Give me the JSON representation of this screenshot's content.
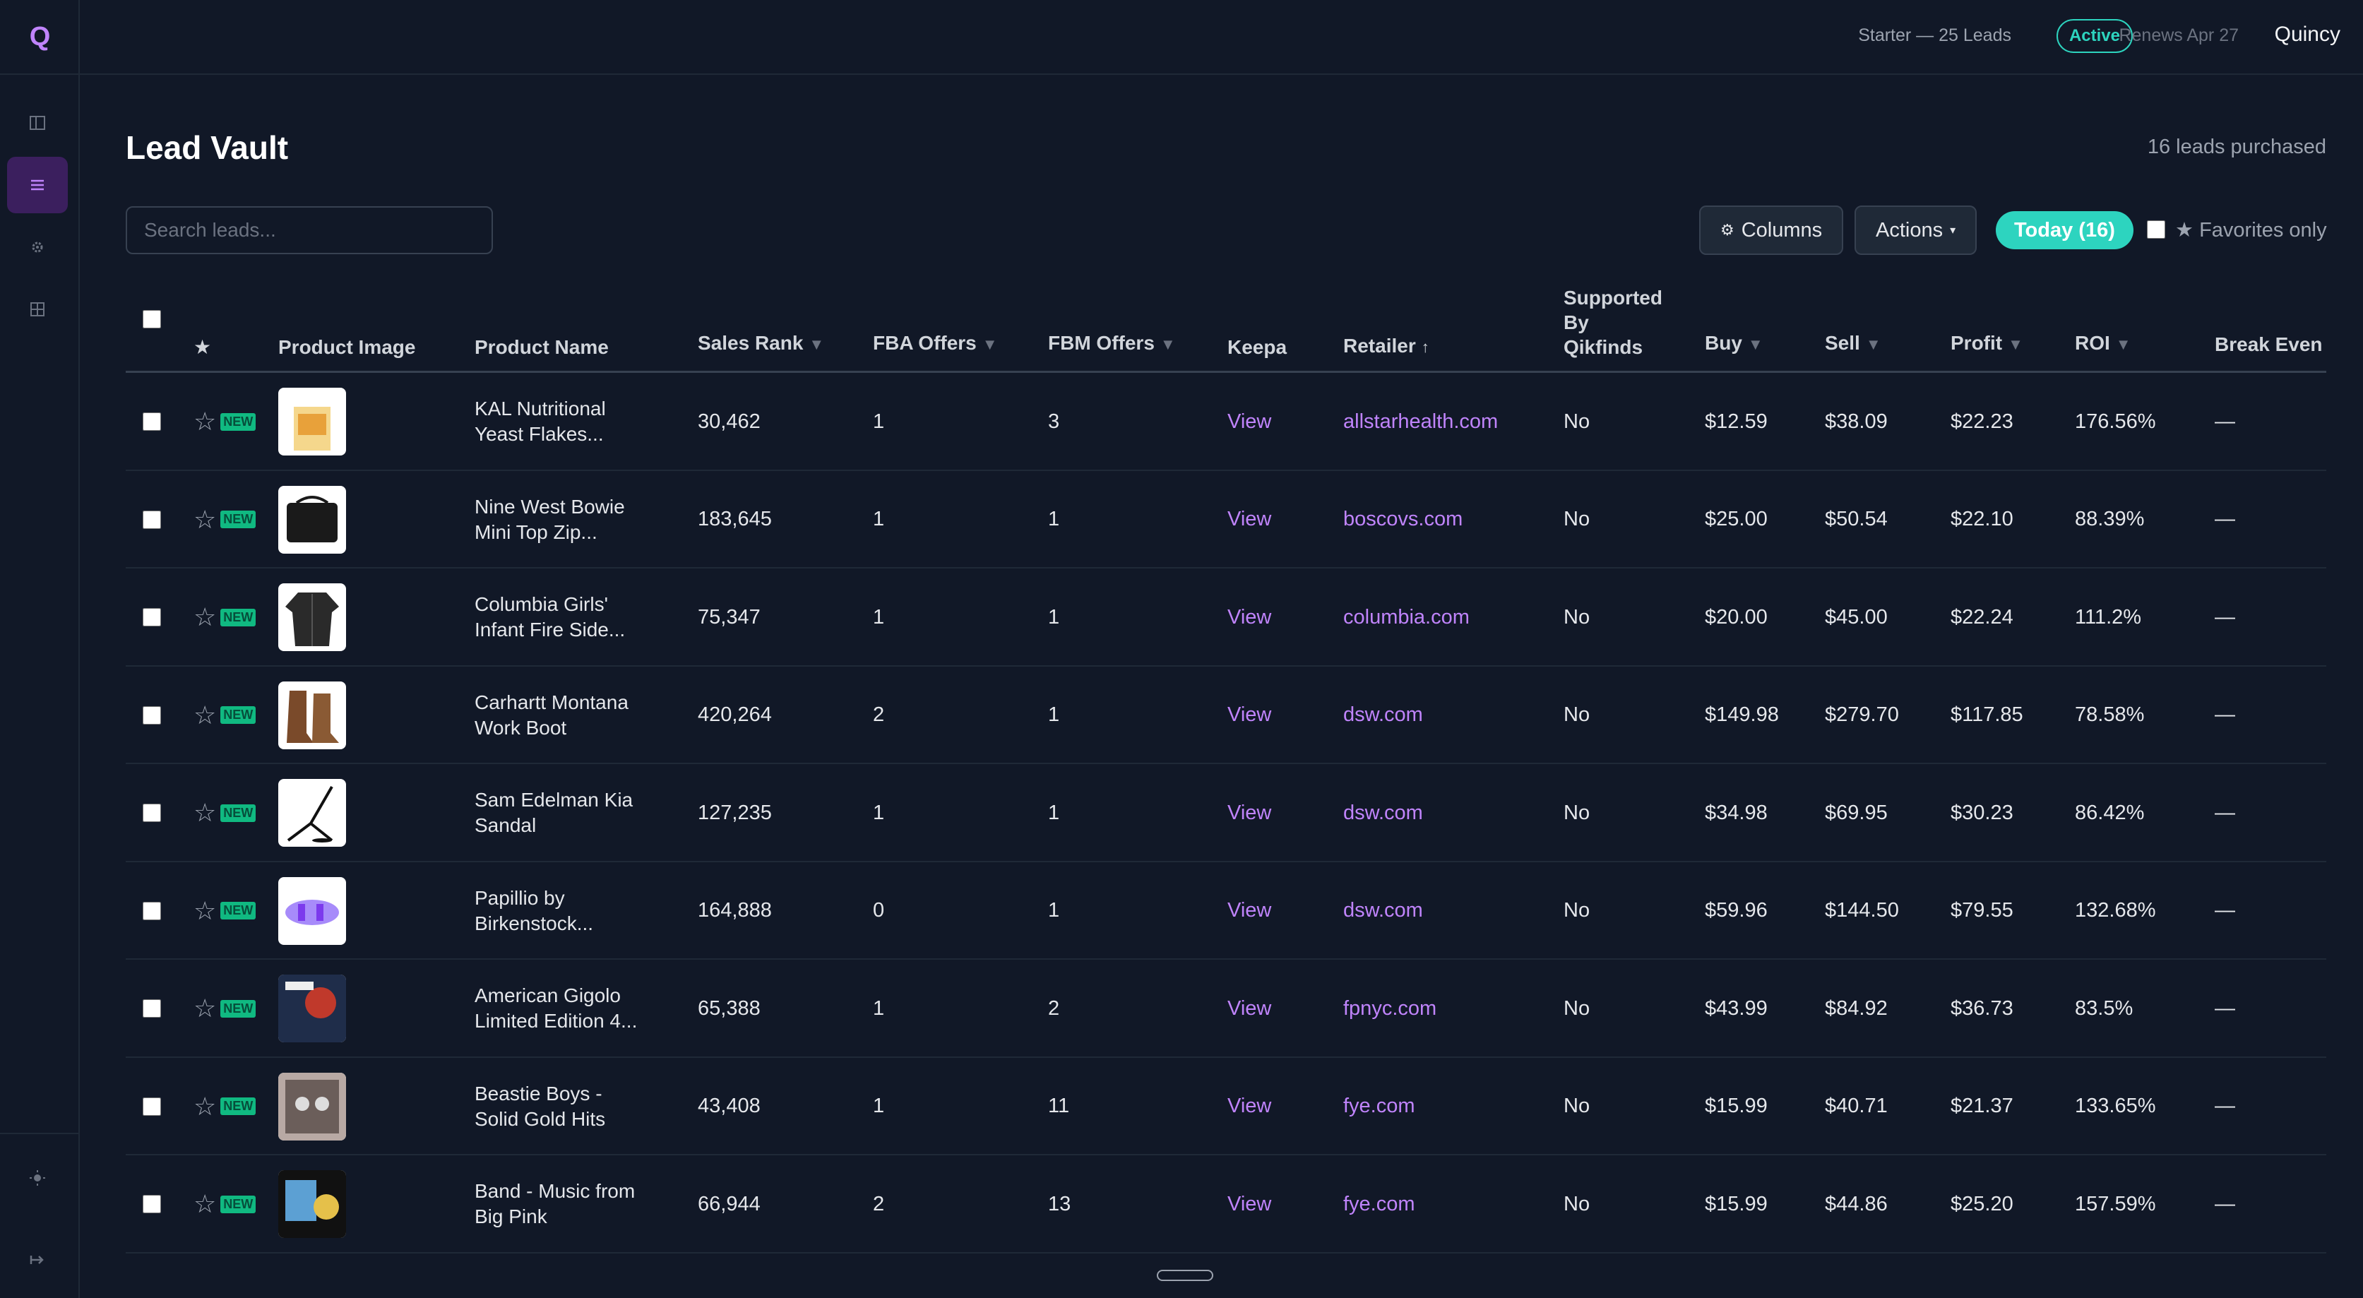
{
  "app": {
    "logo": "Q",
    "user": "Quincy"
  },
  "subscription": {
    "plan": "Starter — 25 Leads",
    "status": "Active",
    "renews": "Renews Apr 27"
  },
  "sidebar": {
    "icons": [
      "panel-icon",
      "list-icon",
      "gear-icon",
      "grid-icon",
      "sun-icon",
      "logout-icon"
    ]
  },
  "page": {
    "title": "Lead Vault",
    "leads_count": "16 leads purchased"
  },
  "search": {
    "placeholder": "Search leads..."
  },
  "toolbar": {
    "columns_label": "Columns",
    "actions_label": "Actions",
    "today_label": "Today (16)",
    "favorites_label": "Favorites only"
  },
  "columns": {
    "product_image": "Product Image",
    "product_name": "Product Name",
    "sales_rank": "Sales Rank",
    "fba_offers": "FBA Offers",
    "fbm_offers": "FBM Offers",
    "keepa": "Keepa",
    "retailer": "Retailer",
    "supported_1": "Supported",
    "supported_2": "By",
    "supported_3": "Qikfinds",
    "buy": "Buy",
    "sell": "Sell",
    "profit": "Profit",
    "roi": "ROI",
    "break_even": "Break Even"
  },
  "badge_new": "NEW",
  "rows": [
    {
      "name1": "KAL Nutritional",
      "name2": "Yeast Flakes...",
      "rank": "30,462",
      "fba": "1",
      "fbm": "3",
      "keepa": "View",
      "retailer": "allstarhealth.com",
      "supported": "No",
      "buy": "$12.59",
      "sell": "$38.09",
      "profit": "$22.23",
      "roi": "176.56%",
      "breakeven": "—"
    },
    {
      "name1": "Nine West Bowie",
      "name2": "Mini Top Zip...",
      "rank": "183,645",
      "fba": "1",
      "fbm": "1",
      "keepa": "View",
      "retailer": "boscovs.com",
      "supported": "No",
      "buy": "$25.00",
      "sell": "$50.54",
      "profit": "$22.10",
      "roi": "88.39%",
      "breakeven": "—"
    },
    {
      "name1": "Columbia Girls'",
      "name2": "Infant Fire Side...",
      "rank": "75,347",
      "fba": "1",
      "fbm": "1",
      "keepa": "View",
      "retailer": "columbia.com",
      "supported": "No",
      "buy": "$20.00",
      "sell": "$45.00",
      "profit": "$22.24",
      "roi": "111.2%",
      "breakeven": "—"
    },
    {
      "name1": "Carhartt Montana",
      "name2": "Work Boot",
      "rank": "420,264",
      "fba": "2",
      "fbm": "1",
      "keepa": "View",
      "retailer": "dsw.com",
      "supported": "No",
      "buy": "$149.98",
      "sell": "$279.70",
      "profit": "$117.85",
      "roi": "78.58%",
      "breakeven": "—"
    },
    {
      "name1": "Sam Edelman Kia",
      "name2": "Sandal",
      "rank": "127,235",
      "fba": "1",
      "fbm": "1",
      "keepa": "View",
      "retailer": "dsw.com",
      "supported": "No",
      "buy": "$34.98",
      "sell": "$69.95",
      "profit": "$30.23",
      "roi": "86.42%",
      "breakeven": "—"
    },
    {
      "name1": "Papillio by",
      "name2": "Birkenstock...",
      "rank": "164,888",
      "fba": "0",
      "fbm": "1",
      "keepa": "View",
      "retailer": "dsw.com",
      "supported": "No",
      "buy": "$59.96",
      "sell": "$144.50",
      "profit": "$79.55",
      "roi": "132.68%",
      "breakeven": "—"
    },
    {
      "name1": "American Gigolo",
      "name2": "Limited Edition 4...",
      "rank": "65,388",
      "fba": "1",
      "fbm": "2",
      "keepa": "View",
      "retailer": "fpnyc.com",
      "supported": "No",
      "buy": "$43.99",
      "sell": "$84.92",
      "profit": "$36.73",
      "roi": "83.5%",
      "breakeven": "—"
    },
    {
      "name1": "Beastie Boys -",
      "name2": "Solid Gold Hits",
      "rank": "43,408",
      "fba": "1",
      "fbm": "11",
      "keepa": "View",
      "retailer": "fye.com",
      "supported": "No",
      "buy": "$15.99",
      "sell": "$40.71",
      "profit": "$21.37",
      "roi": "133.65%",
      "breakeven": "—"
    },
    {
      "name1": "Band - Music from",
      "name2": "Big Pink",
      "rank": "66,944",
      "fba": "2",
      "fbm": "13",
      "keepa": "View",
      "retailer": "fye.com",
      "supported": "No",
      "buy": "$15.99",
      "sell": "$44.86",
      "profit": "$25.20",
      "roi": "157.59%",
      "breakeven": "—"
    }
  ]
}
